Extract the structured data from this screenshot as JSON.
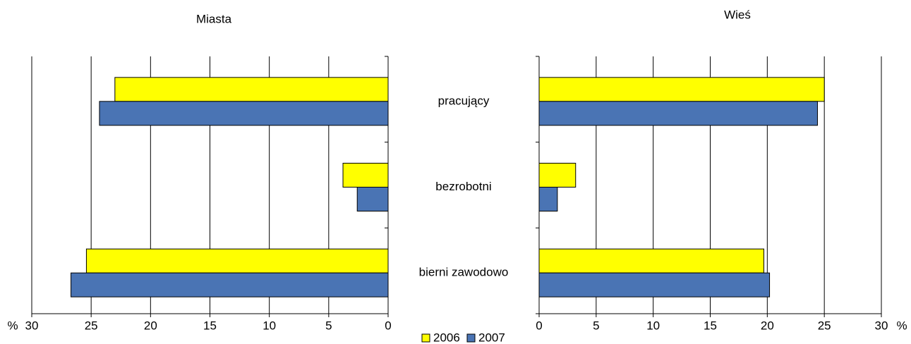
{
  "chart_data": [
    {
      "type": "bar",
      "title": "Miasta",
      "x_label": "%",
      "categories": [
        "pracujący",
        "bezrobotni",
        "bierni zawodowo"
      ],
      "series": [
        {
          "name": "2006",
          "color": "#ffff00",
          "values": [
            23,
            3.8,
            25.4
          ]
        },
        {
          "name": "2007",
          "color": "#4a74b4",
          "values": [
            24.3,
            2.6,
            26.7
          ]
        }
      ],
      "xlim": [
        30,
        0
      ],
      "xticks": [
        30,
        25,
        20,
        15,
        10,
        5,
        0
      ],
      "grid": true
    },
    {
      "type": "bar",
      "title": "Wieś",
      "x_label": "%",
      "series": [
        {
          "color": "#ffff00",
          "values": [
            25,
            3.2,
            19.7
          ]
        },
        {
          "color": "#4a74b4",
          "values": [
            24.4,
            1.6,
            20.2
          ]
        }
      ],
      "xlim": [
        0,
        30
      ],
      "xticks": [
        0,
        5,
        10,
        15,
        20,
        25,
        30
      ],
      "grid": true
    }
  ]
}
